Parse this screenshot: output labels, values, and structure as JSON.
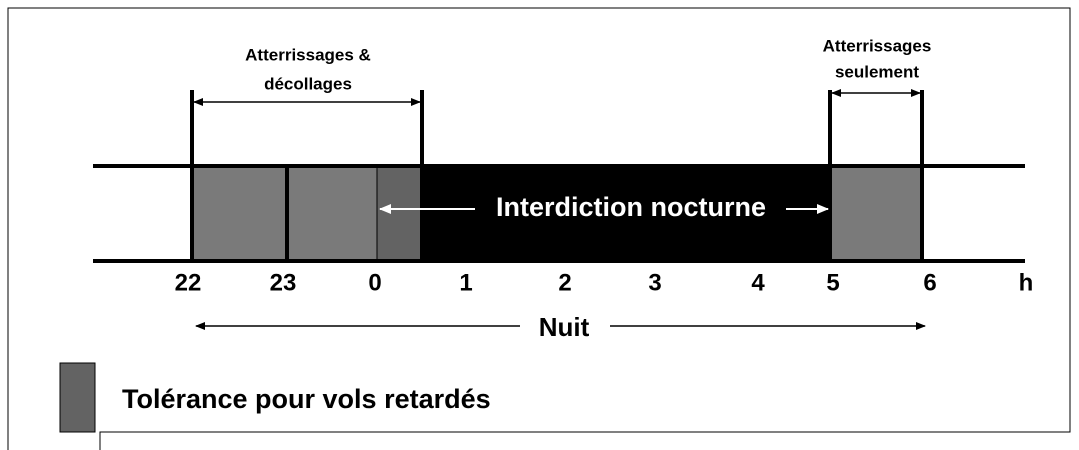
{
  "top_labels": {
    "left": [
      "Atterrissages &",
      "décollages"
    ],
    "right": [
      "Atterrissages",
      "seulement"
    ]
  },
  "band_label": "Interdiction nocturne",
  "hours": [
    "22",
    "23",
    "0",
    "1",
    "2",
    "3",
    "4",
    "5",
    "6"
  ],
  "unit": "h",
  "night_label": "Nuit",
  "legend": {
    "label": "Tolérance pour vols retardés"
  }
}
